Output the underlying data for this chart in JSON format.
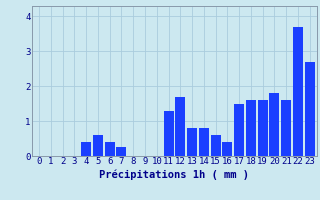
{
  "hours": [
    0,
    1,
    2,
    3,
    4,
    5,
    6,
    7,
    8,
    9,
    10,
    11,
    12,
    13,
    14,
    15,
    16,
    17,
    18,
    19,
    20,
    21,
    22,
    23
  ],
  "values": [
    0.0,
    0.0,
    0.0,
    0.0,
    0.4,
    0.6,
    0.4,
    0.25,
    0.0,
    0.0,
    0.0,
    1.3,
    1.7,
    0.8,
    0.8,
    0.6,
    0.4,
    1.5,
    1.6,
    1.6,
    1.8,
    1.6,
    3.7,
    2.7
  ],
  "bar_color": "#1a3fff",
  "background_color": "#cce8f0",
  "grid_color": "#aaccdd",
  "xlabel": "Précipitations 1h ( mm )",
  "xlabel_color": "#00008b",
  "tick_color": "#00008b",
  "axis_color": "#8899aa",
  "ylim": [
    0,
    4.3
  ],
  "yticks": [
    0,
    1,
    2,
    3,
    4
  ],
  "xlabel_fontsize": 7.5,
  "tick_fontsize": 6.5
}
